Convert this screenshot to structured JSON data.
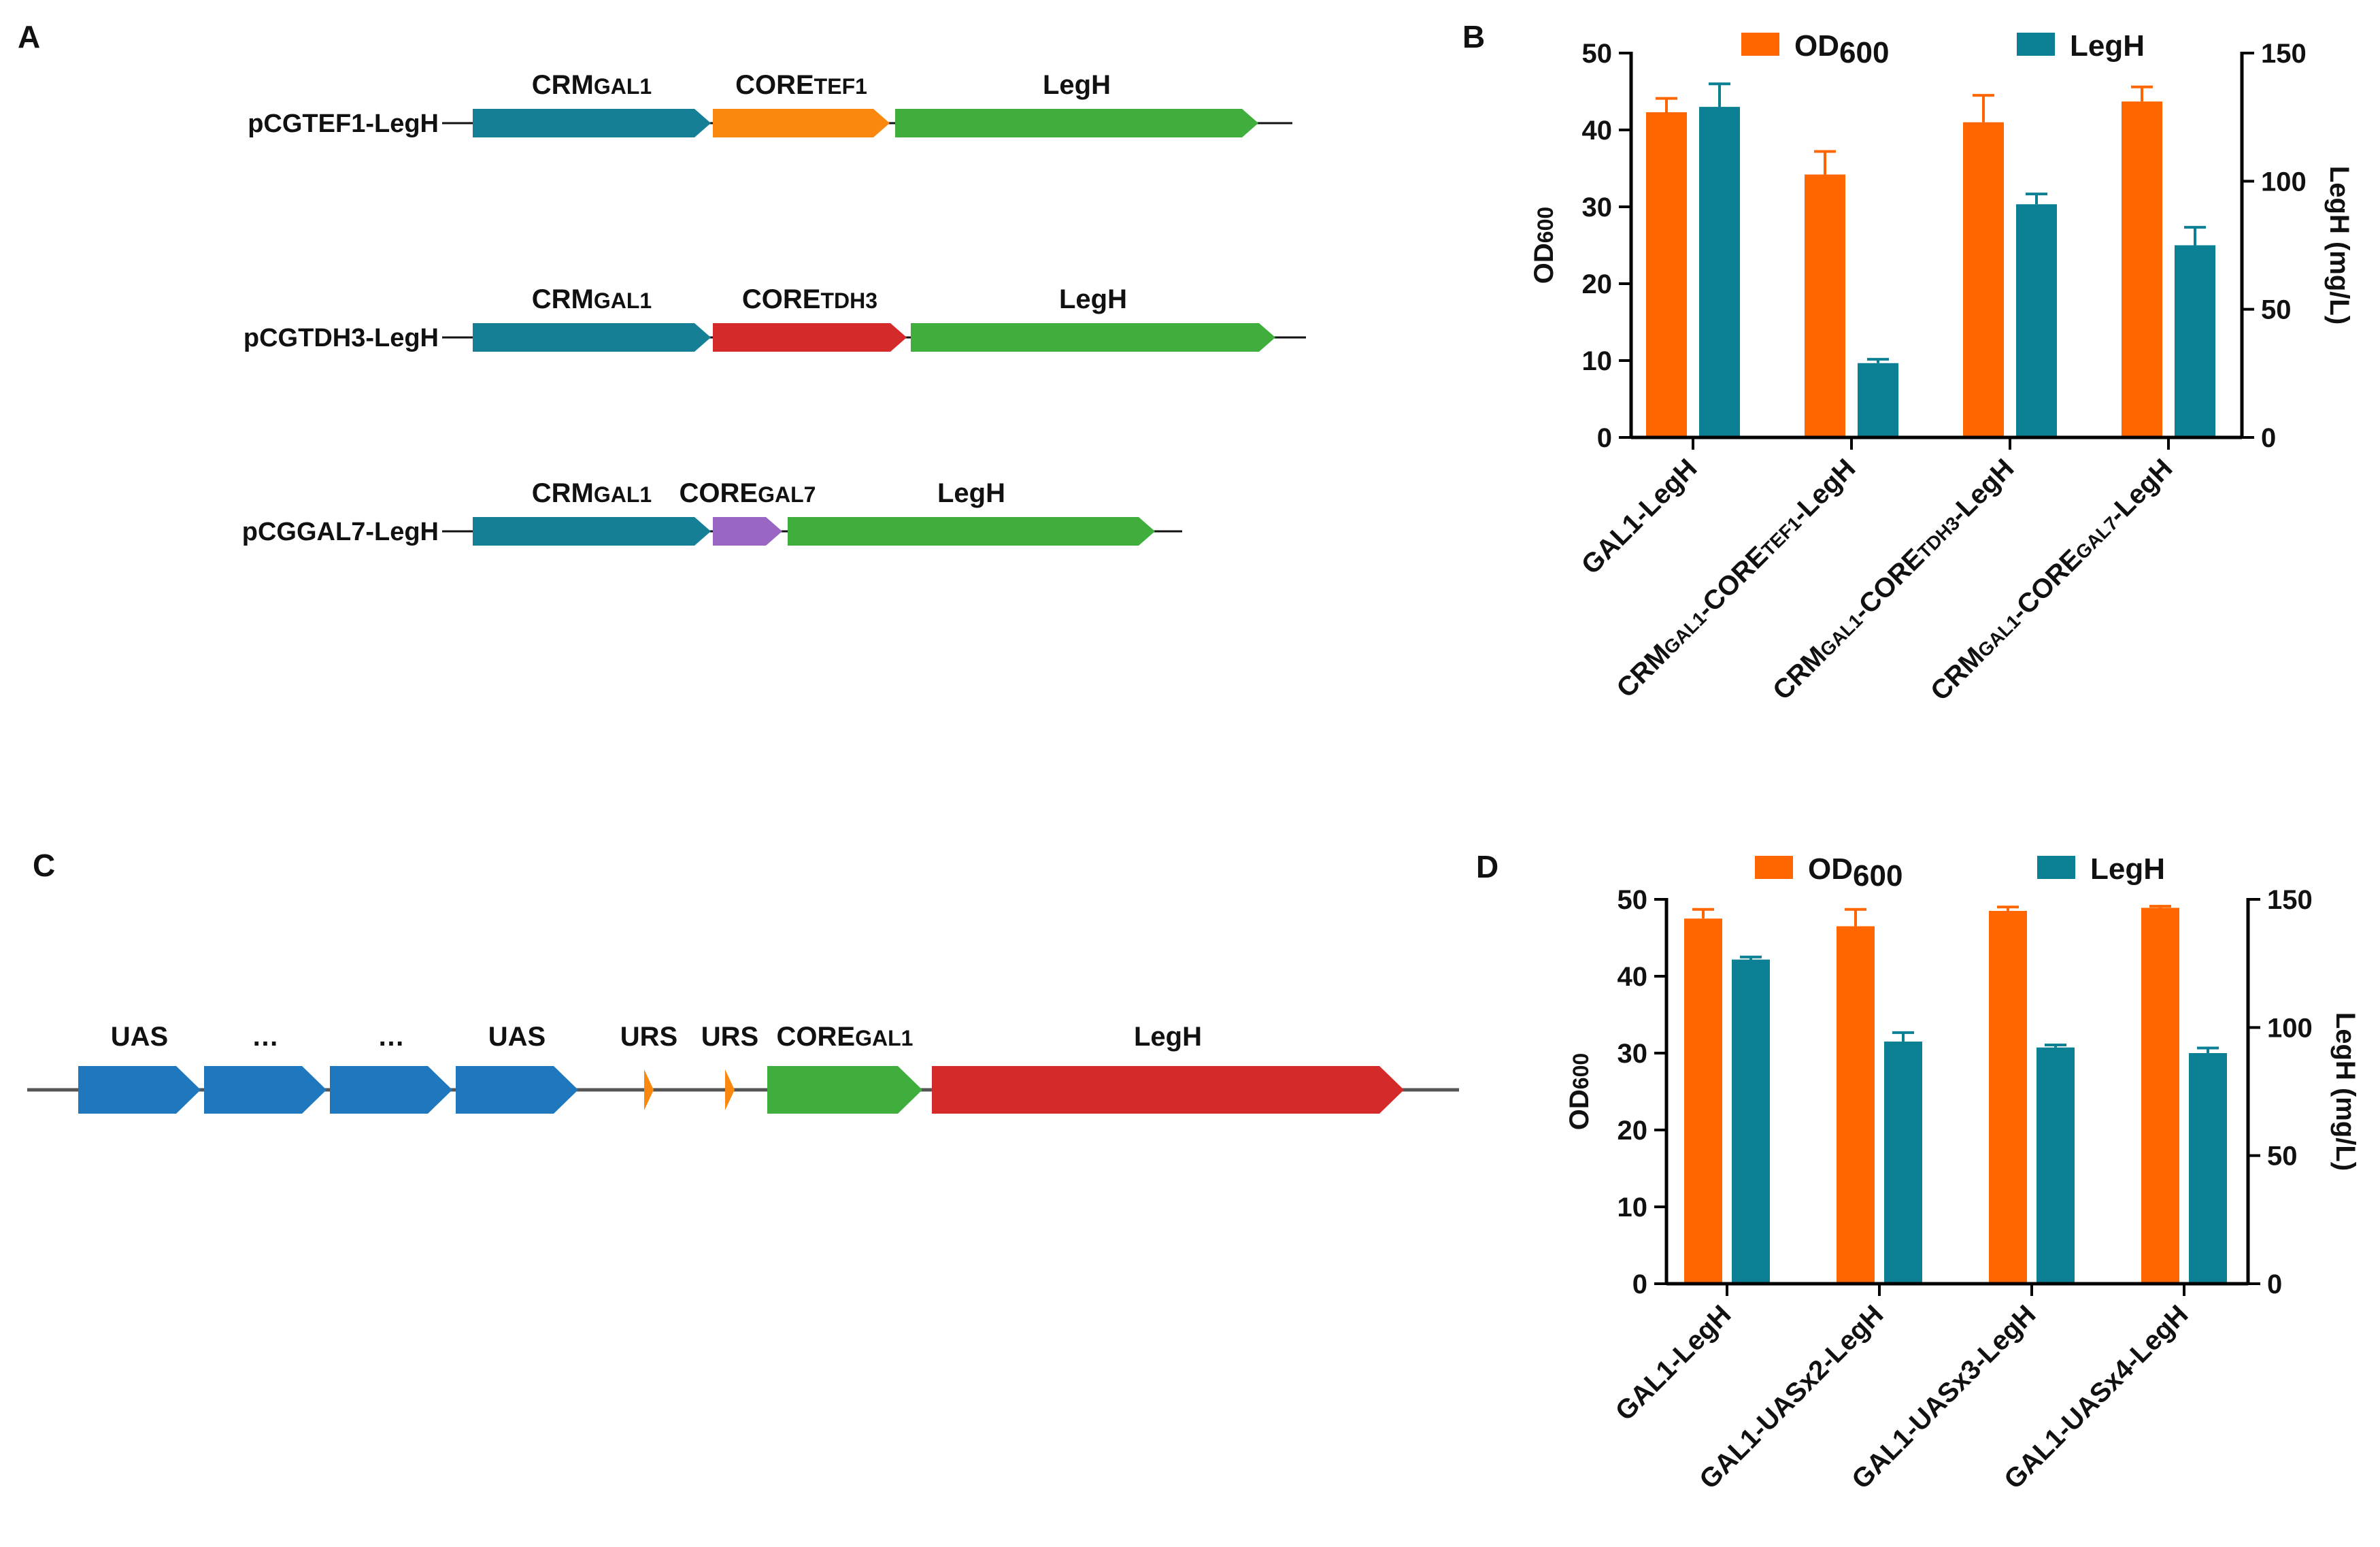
{
  "colors": {
    "teal": "#157f96",
    "orange": "#fa880e",
    "red": "#d42a2a",
    "purple": "#9966c4",
    "green": "#3fae3d",
    "blue": "#1f78bd",
    "bar_orange": "#ff6600",
    "bar_teal": "#0b7f93",
    "axis": "#000000"
  },
  "panels": {
    "a": "A",
    "b": "B",
    "c": "C",
    "d": "D"
  },
  "constructs": [
    {
      "name": "pCGTEF1-LegH",
      "parts": [
        {
          "label_main": "CRM",
          "label_sub": "GAL1",
          "color": "teal"
        },
        {
          "label_main": "CORE",
          "label_sub": "TEF1",
          "color": "orange"
        },
        {
          "label_main": "LegH",
          "label_sub": "",
          "color": "green"
        }
      ]
    },
    {
      "name": "pCGTDH3-LegH",
      "parts": [
        {
          "label_main": "CRM",
          "label_sub": "GAL1",
          "color": "teal"
        },
        {
          "label_main": "CORE",
          "label_sub": "TDH3",
          "color": "red"
        },
        {
          "label_main": "LegH",
          "label_sub": "",
          "color": "green"
        }
      ]
    },
    {
      "name": "pCGGAL7-LegH",
      "parts": [
        {
          "label_main": "CRM",
          "label_sub": "GAL1",
          "color": "teal"
        },
        {
          "label_main": "CORE",
          "label_sub": "GAL7",
          "color": "purple"
        },
        {
          "label_main": "LegH",
          "label_sub": "",
          "color": "green"
        }
      ]
    }
  ],
  "panel_c": {
    "parts": [
      {
        "label_main": "UAS",
        "label_sub": "",
        "color": "blue"
      },
      {
        "label_main": "…",
        "label_sub": "",
        "color": "blue"
      },
      {
        "label_main": "…",
        "label_sub": "",
        "color": "blue"
      },
      {
        "label_main": "UAS",
        "label_sub": "",
        "color": "blue"
      },
      {
        "label_main": "URS",
        "label_sub": "",
        "color": "orange"
      },
      {
        "label_main": "URS",
        "label_sub": "",
        "color": "orange"
      },
      {
        "label_main": "CORE",
        "label_sub": "GAL1",
        "color": "green"
      },
      {
        "label_main": "LegH",
        "label_sub": "",
        "color": "red"
      }
    ]
  },
  "chart_data": [
    {
      "panel": "B",
      "type": "bar",
      "categories": [
        {
          "parts": [
            [
              "GAL1-LegH",
              false
            ]
          ]
        },
        {
          "parts": [
            [
              "CRM",
              false
            ],
            [
              "GAL1",
              true
            ],
            [
              "-CORE",
              false
            ],
            [
              "TEF1",
              true
            ],
            [
              "-LegH",
              false
            ]
          ]
        },
        {
          "parts": [
            [
              "CRM",
              false
            ],
            [
              "GAL1",
              true
            ],
            [
              "-CORE",
              false
            ],
            [
              "TDH3",
              true
            ],
            [
              "-LegH",
              false
            ]
          ]
        },
        {
          "parts": [
            [
              "CRM",
              false
            ],
            [
              "GAL1",
              true
            ],
            [
              "-CORE",
              false
            ],
            [
              "GAL7",
              true
            ],
            [
              "-LegH",
              false
            ]
          ]
        }
      ],
      "series": [
        {
          "name": "OD",
          "name_sub": "600",
          "axis": "left",
          "color": "bar_orange",
          "values": [
            42.3,
            34.2,
            41.0,
            43.7
          ],
          "errors": [
            1.8,
            3.0,
            3.5,
            1.9
          ]
        },
        {
          "name": "LegH",
          "name_sub": "",
          "axis": "right",
          "color": "bar_teal",
          "values": [
            129,
            29,
            91,
            75
          ],
          "errors": [
            9,
            1.5,
            4,
            7
          ]
        }
      ],
      "ylabel_left": {
        "main": "OD",
        "sub": "600"
      },
      "ylabel_right": "LegH (mg/L)",
      "ylim_left": [
        0,
        50
      ],
      "ylim_right": [
        0,
        150
      ],
      "yticks_left": [
        "0",
        "10",
        "20",
        "30",
        "40",
        "50"
      ],
      "yticks_right": [
        "0",
        "50",
        "100",
        "150"
      ],
      "legend": "top"
    },
    {
      "panel": "D",
      "type": "bar",
      "categories": [
        {
          "parts": [
            [
              "GAL1-LegH",
              false
            ]
          ]
        },
        {
          "parts": [
            [
              "GAL1-UASx2-LegH",
              false
            ]
          ]
        },
        {
          "parts": [
            [
              "GAL1-UASx3-LegH",
              false
            ]
          ]
        },
        {
          "parts": [
            [
              "GAL1-UASx4-LegH",
              false
            ]
          ]
        }
      ],
      "series": [
        {
          "name": "OD",
          "name_sub": "600",
          "axis": "left",
          "color": "bar_orange",
          "values": [
            47.5,
            46.5,
            48.5,
            48.9
          ],
          "errors": [
            1.2,
            2.2,
            0.5,
            0.2
          ]
        },
        {
          "name": "LegH",
          "name_sub": "",
          "axis": "right",
          "color": "bar_teal",
          "values": [
            126.5,
            94.5,
            92.2,
            90.0
          ],
          "errors": [
            1,
            3.5,
            1,
            2
          ]
        }
      ],
      "ylabel_left": {
        "main": "OD",
        "sub": "600"
      },
      "ylabel_right": "LegH (mg/L)",
      "ylim_left": [
        0,
        50
      ],
      "ylim_right": [
        0,
        150
      ],
      "yticks_left": [
        "0",
        "10",
        "20",
        "30",
        "40",
        "50"
      ],
      "yticks_right": [
        "0",
        "50",
        "100",
        "150"
      ],
      "legend": "top"
    }
  ]
}
